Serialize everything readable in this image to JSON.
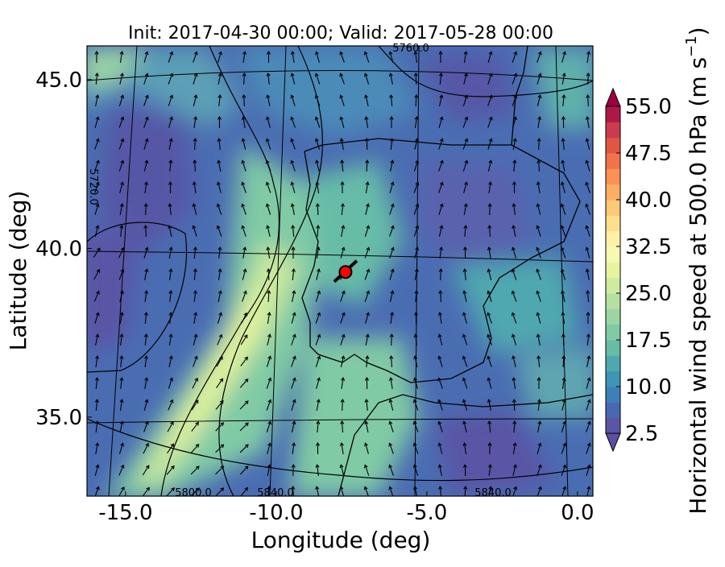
{
  "chart_data": {
    "type": "contourf",
    "title": "Init: 2017-04-30 00:00; Valid: 2017-05-28 00:00",
    "x_label": "Longitude (deg)",
    "y_label": "Latitude (deg)",
    "xlim": [
      -16.28,
      0.51
    ],
    "ylim": [
      32.66,
      46.0
    ],
    "xticks": [
      {
        "value": -15,
        "label": "-15.0"
      },
      {
        "value": -10,
        "label": "-10.0"
      },
      {
        "value": -5,
        "label": "-5.0"
      },
      {
        "value": 0,
        "label": "0.0"
      }
    ],
    "yticks": [
      {
        "value": 35,
        "label": "35.0"
      },
      {
        "value": 40,
        "label": "40.0"
      },
      {
        "value": 45,
        "label": "45.0"
      }
    ],
    "contour_labels": [
      "5760.0",
      "5720.0",
      "5800.0",
      "5840.0",
      "5840.0"
    ],
    "marker": {
      "lon": -7.7,
      "lat": 39.3,
      "color": "#ff0000"
    },
    "colorbar": {
      "label": "Horizontal wind speed at 500.0 hPa (m s",
      "label_exponent": "−1",
      "label_end": ")",
      "clim": [
        2.5,
        55
      ],
      "ticks": [
        {
          "value": 2.5,
          "label": "2.5"
        },
        {
          "value": 10,
          "label": "10.0"
        },
        {
          "value": 17.5,
          "label": "17.5"
        },
        {
          "value": 25,
          "label": "25.0"
        },
        {
          "value": 32.5,
          "label": "32.5"
        },
        {
          "value": 40,
          "label": "40.0"
        },
        {
          "value": 47.5,
          "label": "47.5"
        },
        {
          "value": 55,
          "label": "55.0"
        }
      ],
      "colors": [
        "#5a55a5",
        "#4869b1",
        "#3d80b9",
        "#3d95b8",
        "#4fa8b0",
        "#66bca7",
        "#80caa5",
        "#9cd5a4",
        "#b6e0a2",
        "#cfeb9e",
        "#e6f59c",
        "#f5fab0",
        "#fef1a6",
        "#fedf8c",
        "#fec975",
        "#fcae62",
        "#f99254",
        "#f1734a",
        "#e05642",
        "#cb3b4e",
        "#ae1848"
      ],
      "under_color": "#5e4fa2",
      "over_color": "#9e0142"
    }
  }
}
